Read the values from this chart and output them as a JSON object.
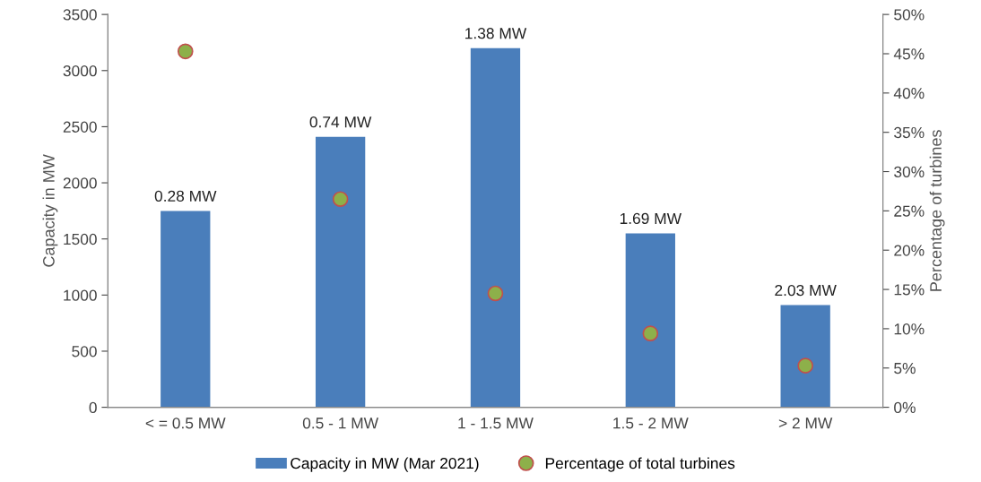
{
  "chart_data": {
    "type": "bar",
    "ylabel": "Capacity in MW",
    "y2label": "Percentage of turbines",
    "categories": [
      "< = 0.5 MW",
      "0.5 - 1 MW",
      "1 - 1.5 MW",
      "1.5 - 2 MW",
      "> 2 MW"
    ],
    "series": [
      {
        "name": "Capacity in MW (Mar 2021)",
        "color": "#4a7ebb",
        "values": [
          1750,
          2410,
          3200,
          1550,
          910
        ]
      },
      {
        "name": "Percentage of total turbines",
        "type": "scatter",
        "axis": "y2",
        "color": "#8db04a",
        "values": [
          45.3,
          26.5,
          14.5,
          9.4,
          5.3
        ]
      }
    ],
    "ylim": [
      0,
      3500
    ],
    "yticks": [
      0,
      500,
      1000,
      1500,
      2000,
      2500,
      3000,
      3500
    ],
    "y2lim": [
      0,
      50
    ],
    "y2ticks": [
      {
        "value": 0,
        "label": "0%"
      },
      {
        "value": 5,
        "label": "5%"
      },
      {
        "value": 10,
        "label": "10%"
      },
      {
        "value": 15,
        "label": "15%"
      },
      {
        "value": 20,
        "label": "20%"
      },
      {
        "value": 25,
        "label": "25%"
      },
      {
        "value": 30,
        "label": "30%"
      },
      {
        "value": 35,
        "label": "35%"
      },
      {
        "value": 40,
        "label": "40%"
      },
      {
        "value": 45,
        "label": "45%"
      },
      {
        "value": 50,
        "label": "50%"
      }
    ],
    "annotations": [
      {
        "text": "0.28 MW",
        "x": "< = 0.5 MW",
        "y": 1750
      },
      {
        "text": "0.74 MW",
        "x": "0.5 - 1 MW",
        "y": 2410
      },
      {
        "text": "1.38 MW",
        "x": "1 - 1.5 MW",
        "y": 3200
      },
      {
        "text": "1.69 MW",
        "x": "1.5 - 2 MW",
        "y": 1550
      },
      {
        "text": "2.03 MW",
        "x": "> 2 MW",
        "y": 910
      }
    ],
    "legend": "bottom",
    "marker": "circle"
  }
}
